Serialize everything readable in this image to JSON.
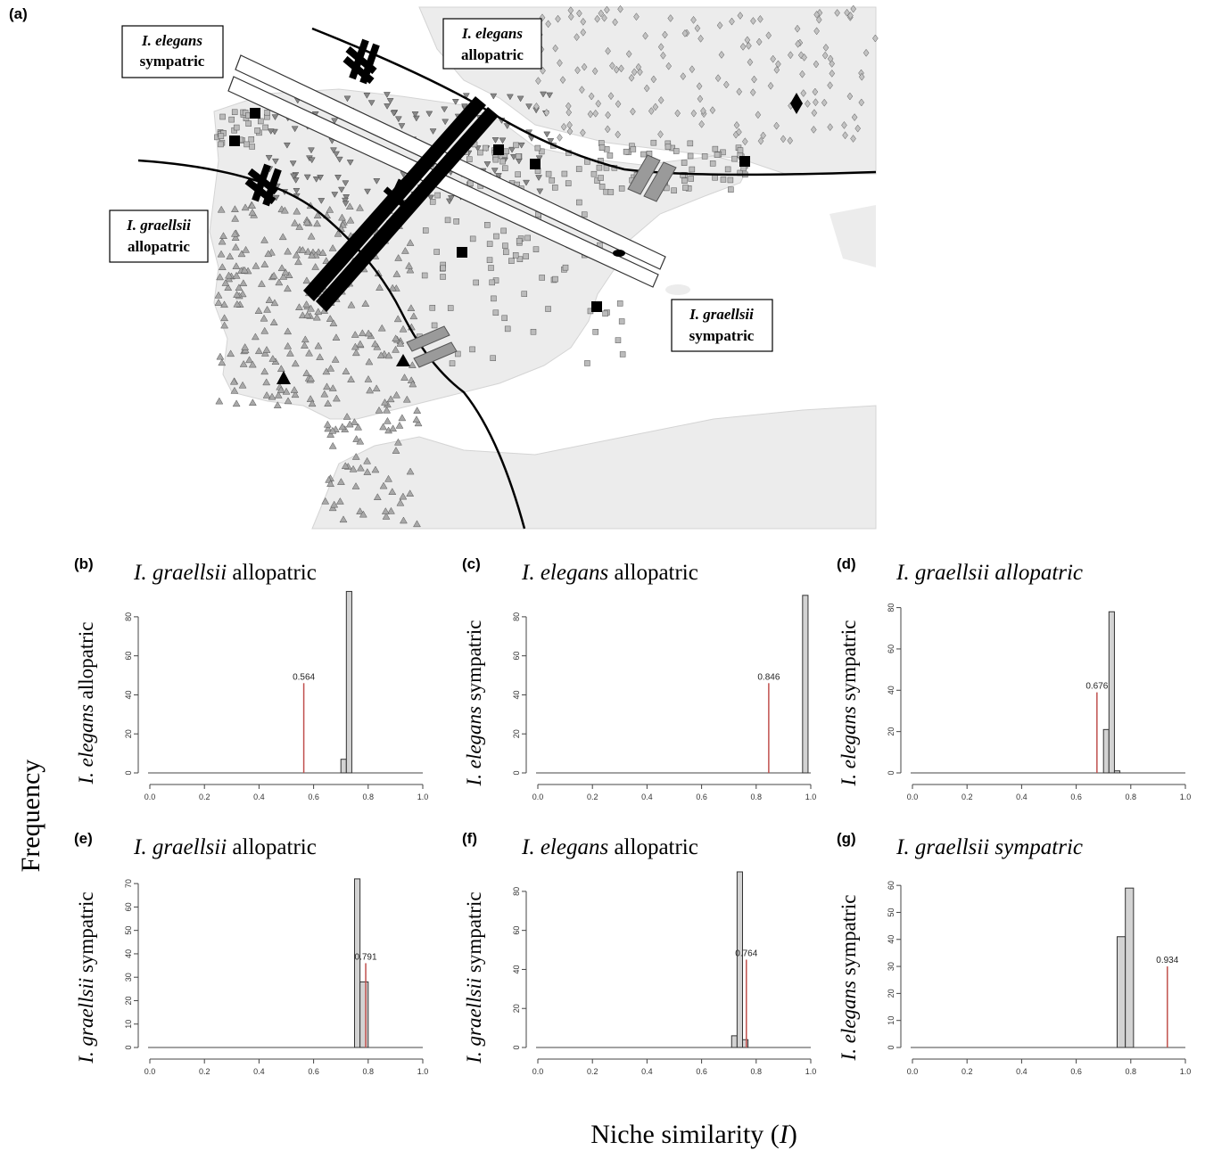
{
  "figure": {
    "panel_a_letter": "(a)",
    "shared_ylabel": "Frequency",
    "shared_xlabel_text": "Niche similarity (",
    "shared_xlabel_symbol": "I",
    "shared_xlabel_close": ")"
  },
  "map": {
    "labels": [
      {
        "species": "I. elegans",
        "status": "sympatric"
      },
      {
        "species": "I. elegans",
        "status": "allopatric"
      },
      {
        "species": "I. graellsii",
        "status": "allopatric"
      },
      {
        "species": "I. graellsii",
        "status": "sympatric"
      }
    ]
  },
  "colors": {
    "bar_fill": "#d3d3d3",
    "bar_stroke": "#333333",
    "observed_line": "#c0504d",
    "map_background": "#ececec",
    "map_sea": "#ffffff"
  },
  "chart_data": [
    {
      "panel": "(b)",
      "type": "bar",
      "title_species": "I. graellsii",
      "title_status": "allopatric",
      "title_status_italic": false,
      "ylabel_species": "I. elegans",
      "ylabel_status": "allopatric",
      "xlim": [
        0,
        1
      ],
      "ylim": [
        0,
        90
      ],
      "x_ticks": [
        "0.0",
        "0.2",
        "0.4",
        "0.6",
        "0.8",
        "1.0"
      ],
      "y_ticks": [
        "0",
        "20",
        "40",
        "60",
        "80"
      ],
      "bins": [
        {
          "x0": 0.7,
          "x1": 0.72,
          "count": 7
        },
        {
          "x0": 0.72,
          "x1": 0.74,
          "count": 93
        }
      ],
      "observed": {
        "value": 0.564,
        "label": "0.564",
        "height": 46
      }
    },
    {
      "panel": "(c)",
      "type": "bar",
      "title_species": "I.  elegans",
      "title_status": "allopatric",
      "title_status_italic": false,
      "ylabel_species": "I. elegans",
      "ylabel_status": "sympatric",
      "xlim": [
        0,
        1
      ],
      "ylim": [
        0,
        90
      ],
      "x_ticks": [
        "0.0",
        "0.2",
        "0.4",
        "0.6",
        "0.8",
        "1.0"
      ],
      "y_ticks": [
        "0",
        "20",
        "40",
        "60",
        "80"
      ],
      "bins": [
        {
          "x0": 0.97,
          "x1": 0.99,
          "count": 91
        }
      ],
      "observed": {
        "value": 0.846,
        "label": "0.846",
        "height": 46
      }
    },
    {
      "panel": "(d)",
      "type": "bar",
      "title_species": "I. graellsii",
      "title_status": "allopatric",
      "title_status_italic": true,
      "ylabel_species": "I. elegans",
      "ylabel_status": "sympatric",
      "xlim": [
        0,
        1
      ],
      "ylim": [
        0,
        85
      ],
      "x_ticks": [
        "0.0",
        "0.2",
        "0.4",
        "0.6",
        "0.8",
        "1.0"
      ],
      "y_ticks": [
        "0",
        "20",
        "40",
        "60",
        "80"
      ],
      "bins": [
        {
          "x0": 0.7,
          "x1": 0.72,
          "count": 21
        },
        {
          "x0": 0.72,
          "x1": 0.74,
          "count": 78
        },
        {
          "x0": 0.74,
          "x1": 0.76,
          "count": 1
        }
      ],
      "observed": {
        "value": 0.676,
        "label": "0.676",
        "height": 39
      }
    },
    {
      "panel": "(e)",
      "type": "bar",
      "title_species": "I. graellsii",
      "title_status": "allopatric",
      "title_status_italic": false,
      "ylabel_species": "I. graellsii",
      "ylabel_status": "sympatric",
      "xlim": [
        0,
        1
      ],
      "ylim": [
        0,
        75
      ],
      "x_ticks": [
        "0.0",
        "0.2",
        "0.4",
        "0.6",
        "0.8",
        "1.0"
      ],
      "y_ticks": [
        "0",
        "10",
        "20",
        "30",
        "40",
        "50",
        "60",
        "70"
      ],
      "bins": [
        {
          "x0": 0.75,
          "x1": 0.77,
          "count": 72
        },
        {
          "x0": 0.77,
          "x1": 0.8,
          "count": 28
        }
      ],
      "observed": {
        "value": 0.791,
        "label": "0.791",
        "height": 36
      }
    },
    {
      "panel": "(f)",
      "type": "bar",
      "title_species": "I.  elegans",
      "title_status": "allopatric",
      "title_status_italic": false,
      "ylabel_species": "I. graellsii",
      "ylabel_status": "sympatric",
      "xlim": [
        0,
        1
      ],
      "ylim": [
        0,
        90
      ],
      "x_ticks": [
        "0.0",
        "0.2",
        "0.4",
        "0.6",
        "0.8",
        "1.0"
      ],
      "y_ticks": [
        "0",
        "20",
        "40",
        "60",
        "80"
      ],
      "bins": [
        {
          "x0": 0.71,
          "x1": 0.73,
          "count": 6
        },
        {
          "x0": 0.73,
          "x1": 0.75,
          "count": 90
        },
        {
          "x0": 0.75,
          "x1": 0.77,
          "count": 4
        }
      ],
      "observed": {
        "value": 0.764,
        "label": "0.764",
        "height": 45
      }
    },
    {
      "panel": "(g)",
      "type": "bar",
      "title_species": "I. graellsii",
      "title_status": "sympatric",
      "title_status_italic": true,
      "ylabel_species": "I. elegans",
      "ylabel_status": "sympatric",
      "xlim": [
        0,
        1
      ],
      "ylim": [
        0,
        65
      ],
      "x_ticks": [
        "0.0",
        "0.2",
        "0.4",
        "0.6",
        "0.8",
        "1.0"
      ],
      "y_ticks": [
        "0",
        "10",
        "20",
        "30",
        "40",
        "50",
        "60"
      ],
      "bins": [
        {
          "x0": 0.75,
          "x1": 0.78,
          "count": 41
        },
        {
          "x0": 0.78,
          "x1": 0.81,
          "count": 59
        }
      ],
      "observed": {
        "value": 0.934,
        "label": "0.934",
        "height": 30
      }
    }
  ]
}
